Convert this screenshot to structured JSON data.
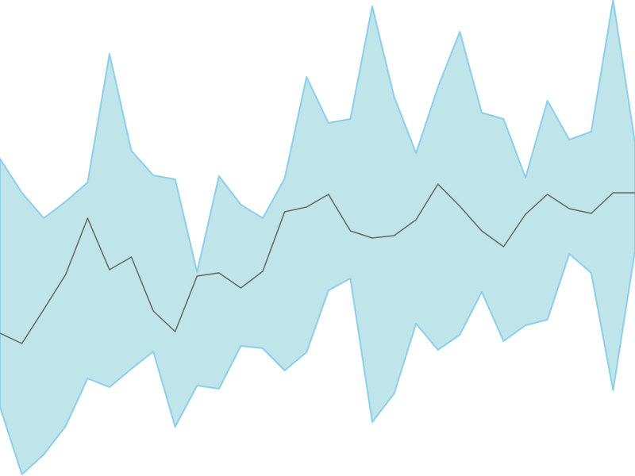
{
  "chart_data": {
    "type": "line",
    "x": [
      0,
      1,
      2,
      3,
      4,
      5,
      6,
      7,
      8,
      9,
      10,
      11,
      12,
      13,
      14,
      15,
      16,
      17,
      18,
      19,
      20,
      21,
      22,
      23,
      24,
      25,
      26,
      27,
      28,
      29
    ],
    "xlim": [
      0,
      29
    ],
    "ylim": [
      0,
      600
    ],
    "band": {
      "fill": "#bfe4e9",
      "stroke": "#8ccfec",
      "upper": [
        400,
        357,
        325,
        346,
        370,
        532,
        410,
        379,
        374,
        257,
        378,
        342,
        325,
        375,
        503,
        445,
        450,
        592,
        478,
        407,
        490,
        560,
        458,
        450,
        376,
        473,
        424,
        434,
        600,
        420
      ],
      "lower": [
        87,
        2,
        27,
        63,
        123,
        112,
        135,
        157,
        62,
        114,
        110,
        164,
        161,
        133,
        156,
        234,
        249,
        68,
        104,
        192,
        159,
        178,
        232,
        170,
        190,
        197,
        280,
        256,
        108,
        284
      ]
    },
    "line": {
      "color": "#666666",
      "values": [
        180,
        167,
        210,
        254,
        325,
        260,
        276,
        208,
        182,
        252,
        256,
        237,
        258,
        333,
        339,
        355,
        309,
        300,
        303,
        323,
        368,
        340,
        309,
        289,
        330,
        355,
        337,
        331,
        357,
        357
      ]
    }
  }
}
